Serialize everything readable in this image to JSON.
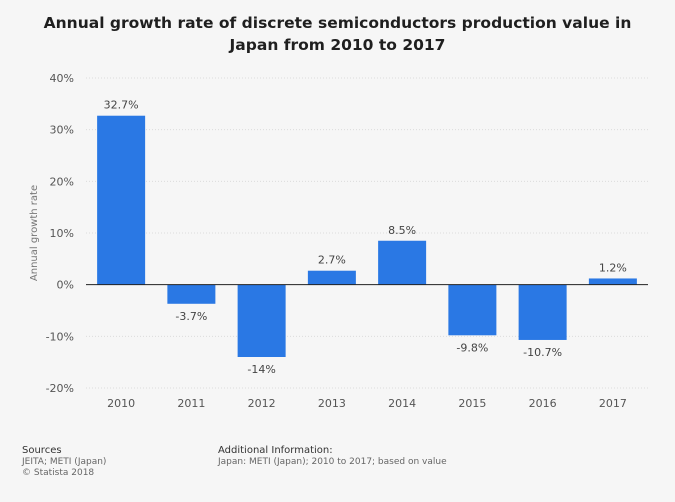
{
  "chart_data": {
    "type": "bar",
    "title_lines": [
      "Annual growth rate of discrete semiconductors production value in",
      "Japan from 2010 to 2017"
    ],
    "categories": [
      "2010",
      "2011",
      "2012",
      "2013",
      "2014",
      "2015",
      "2016",
      "2017"
    ],
    "values": [
      32.7,
      -3.7,
      -14,
      2.7,
      8.5,
      -9.8,
      -10.7,
      1.2
    ],
    "value_labels": [
      "32.7%",
      "-3.7%",
      "-14%",
      "2.7%",
      "8.5%",
      "-9.8%",
      "-10.7%",
      "1.2%"
    ],
    "ylabel": "Annual growth rate",
    "xlabel": "",
    "ylim": [
      -20,
      40
    ],
    "yticks": [
      40,
      30,
      20,
      10,
      0,
      -10,
      -20
    ],
    "ytick_labels": [
      "40%",
      "30%",
      "20%",
      "10%",
      "0%",
      "-10%",
      "-20%"
    ],
    "grid": true,
    "bar_color": "#2a78e4"
  },
  "footer": {
    "sources_heading": "Sources",
    "sources_line1": "JEITA; METI (Japan)",
    "sources_line2": "© Statista 2018",
    "additional_heading": "Additional Information:",
    "additional_text": "Japan: METI (Japan); 2010 to 2017; based on value"
  }
}
